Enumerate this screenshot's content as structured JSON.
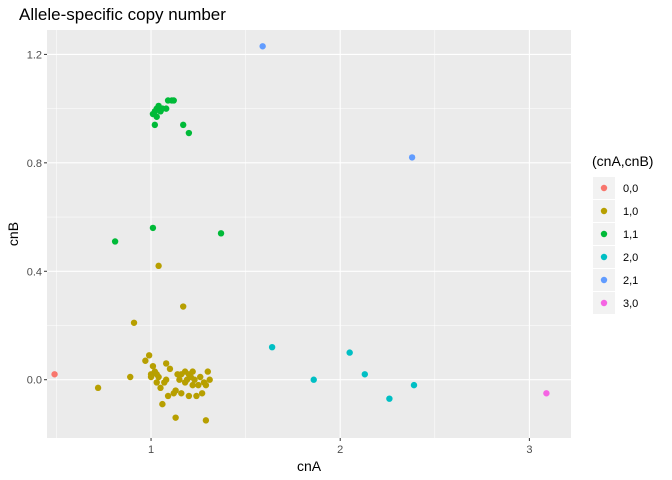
{
  "chart_data": {
    "type": "scatter",
    "title": "Allele-specific copy number",
    "xlabel": "cnA",
    "ylabel": "cnB",
    "xlim": [
      0.45,
      3.22
    ],
    "ylim": [
      -0.215,
      1.29
    ],
    "x_ticks": [
      1,
      2,
      3
    ],
    "x_tick_labels": [
      "1",
      "2",
      "3"
    ],
    "y_ticks": [
      0.0,
      0.4,
      0.8,
      1.2
    ],
    "y_tick_labels": [
      "0.0",
      "0.4",
      "0.8",
      "1.2"
    ],
    "x_minor": [
      0.5,
      1.5,
      2.5
    ],
    "y_minor": [
      0.2,
      0.6,
      1.0
    ],
    "grid": true,
    "legend": {
      "title": "(cnA,cnB)",
      "position": "right"
    },
    "colors": {
      "panel": "#ebebeb",
      "grid_major": "#ffffff",
      "legend_key_bg": "#f2f2f2"
    },
    "series": [
      {
        "name": "0,0",
        "color": "#F8766D",
        "points": [
          [
            0.49,
            0.02
          ]
        ]
      },
      {
        "name": "1,0",
        "color": "#B79F00",
        "points": [
          [
            0.72,
            -0.03
          ],
          [
            0.89,
            0.01
          ],
          [
            0.91,
            0.21
          ],
          [
            0.97,
            0.07
          ],
          [
            0.99,
            0.09
          ],
          [
            1.0,
            0.02
          ],
          [
            1.0,
            0.01
          ],
          [
            1.01,
            0.05
          ],
          [
            1.02,
            0.03
          ],
          [
            1.03,
            -0.01
          ],
          [
            1.03,
            0.02
          ],
          [
            1.04,
            0.01
          ],
          [
            1.04,
            0.42
          ],
          [
            1.05,
            -0.03
          ],
          [
            1.06,
            -0.09
          ],
          [
            1.07,
            -0.01
          ],
          [
            1.08,
            0.0
          ],
          [
            1.08,
            0.06
          ],
          [
            1.09,
            -0.06
          ],
          [
            1.1,
            0.04
          ],
          [
            1.12,
            -0.05
          ],
          [
            1.13,
            -0.04
          ],
          [
            1.13,
            -0.14
          ],
          [
            1.14,
            0.02
          ],
          [
            1.15,
            0.0
          ],
          [
            1.16,
            0.02
          ],
          [
            1.16,
            -0.05
          ],
          [
            1.17,
            0.27
          ],
          [
            1.18,
            0.03
          ],
          [
            1.18,
            -0.01
          ],
          [
            1.19,
            0.0
          ],
          [
            1.2,
            0.02
          ],
          [
            1.2,
            -0.06
          ],
          [
            1.21,
            0.01
          ],
          [
            1.22,
            -0.02
          ],
          [
            1.22,
            0.03
          ],
          [
            1.23,
            0.0
          ],
          [
            1.24,
            -0.06
          ],
          [
            1.25,
            -0.02
          ],
          [
            1.26,
            0.01
          ],
          [
            1.27,
            -0.05
          ],
          [
            1.28,
            -0.01
          ],
          [
            1.29,
            -0.02
          ],
          [
            1.29,
            -0.15
          ],
          [
            1.3,
            0.03
          ],
          [
            1.31,
            0.0
          ]
        ]
      },
      {
        "name": "1,1",
        "color": "#00BA38",
        "points": [
          [
            0.81,
            0.51
          ],
          [
            1.01,
            0.56
          ],
          [
            1.01,
            0.98
          ],
          [
            1.02,
            0.99
          ],
          [
            1.02,
            0.94
          ],
          [
            1.03,
            1.0
          ],
          [
            1.03,
            0.97
          ],
          [
            1.04,
            1.01
          ],
          [
            1.05,
            0.99
          ],
          [
            1.06,
            1.0
          ],
          [
            1.08,
            1.0
          ],
          [
            1.09,
            1.03
          ],
          [
            1.11,
            1.03
          ],
          [
            1.12,
            1.03
          ],
          [
            1.17,
            0.94
          ],
          [
            1.2,
            0.91
          ],
          [
            1.37,
            0.54
          ]
        ]
      },
      {
        "name": "2,0",
        "color": "#00BFC4",
        "points": [
          [
            1.64,
            0.12
          ],
          [
            1.86,
            0.0
          ],
          [
            2.05,
            0.1
          ],
          [
            2.13,
            0.02
          ],
          [
            2.26,
            -0.07
          ],
          [
            2.39,
            -0.02
          ]
        ]
      },
      {
        "name": "2,1",
        "color": "#619CFF",
        "points": [
          [
            1.59,
            1.23
          ],
          [
            2.38,
            0.82
          ]
        ]
      },
      {
        "name": "3,0",
        "color": "#F564E3",
        "points": [
          [
            3.09,
            -0.05
          ]
        ]
      }
    ]
  }
}
